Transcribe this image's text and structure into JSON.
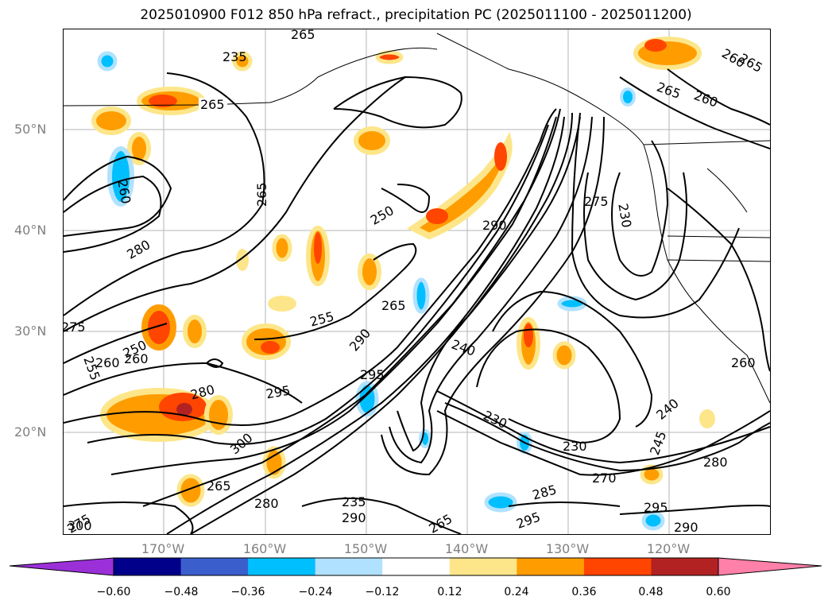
{
  "title": "2025010900 F012 850 hPa refract., precipitation PC (2025011100 - 2025011200)",
  "lat_labels": [
    "50°N",
    "40°N",
    "30°N",
    "20°N"
  ],
  "lon_labels": [
    "170°W",
    "160°W",
    "150°W",
    "140°W",
    "130°W",
    "120°W"
  ],
  "contour_labels": [
    "265",
    "265",
    "265",
    "265",
    "260",
    "265",
    "260",
    "250",
    "290",
    "275",
    "230",
    "260",
    "280",
    "275",
    "255",
    "260",
    "250",
    "260",
    "265",
    "255",
    "280",
    "235",
    "240",
    "290",
    "295",
    "295",
    "230",
    "230",
    "260",
    "240",
    "245",
    "280",
    "285",
    "270",
    "275",
    "300",
    "300",
    "265",
    "280",
    "295",
    "235",
    "265",
    "290",
    "295",
    "290"
  ],
  "colorbar": {
    "ticks": [
      "−0.60",
      "−0.48",
      "−0.36",
      "−0.24",
      "−0.12",
      "0.12",
      "0.24",
      "0.36",
      "0.48",
      "0.60"
    ],
    "colors": [
      "#9b30d9",
      "#00008b",
      "#3a5fcd",
      "#00bfff",
      "#b0e2ff",
      "#ffffff",
      "#fde68a",
      "#ff9d00",
      "#ff4500",
      "#b22222",
      "#ff80a8"
    ]
  }
}
